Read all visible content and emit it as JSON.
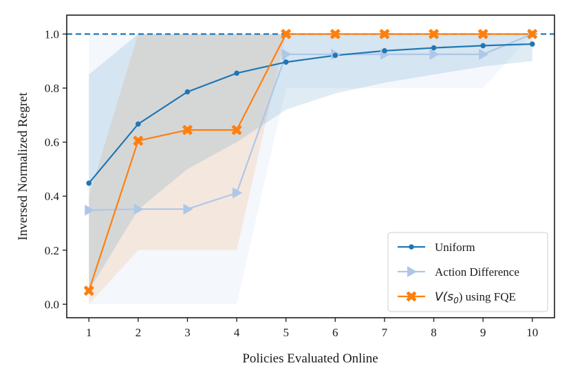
{
  "chart_data": {
    "type": "line",
    "xlabel": "Policies Evaluated Online",
    "ylabel": "Inversed Normalized Regret",
    "x": [
      1,
      2,
      3,
      4,
      5,
      6,
      7,
      8,
      9,
      10
    ],
    "xlim": [
      0.55,
      10.45
    ],
    "ylim": [
      -0.05,
      1.07
    ],
    "xticks": [
      1,
      2,
      3,
      4,
      5,
      6,
      7,
      8,
      9,
      10
    ],
    "yticks": [
      0.0,
      0.2,
      0.4,
      0.6,
      0.8,
      1.0
    ],
    "ytick_labels": [
      "0.0",
      "0.2",
      "0.4",
      "0.6",
      "0.8",
      "1.0"
    ],
    "reference_line": {
      "y": 1.0,
      "style": "dashed",
      "color": "#1f77b4"
    },
    "grid": false,
    "legend_position": "bottom-right",
    "series": [
      {
        "name": "Uniform",
        "color": "#1f77b4",
        "marker": "circle",
        "values": [
          0.448,
          0.667,
          0.786,
          0.855,
          0.896,
          0.921,
          0.938,
          0.949,
          0.957,
          0.963
        ],
        "band_lower": [
          0.05,
          0.35,
          0.5,
          0.6,
          0.72,
          0.78,
          0.82,
          0.85,
          0.88,
          0.9
        ],
        "band_upper": [
          0.85,
          1.0,
          1.0,
          1.0,
          1.0,
          1.0,
          1.0,
          1.0,
          1.0,
          1.0
        ]
      },
      {
        "name": "Action Difference",
        "color": "#aec7e8",
        "marker": "triangle-right",
        "values": [
          0.348,
          0.352,
          0.352,
          0.412,
          0.925,
          0.925,
          0.925,
          0.925,
          0.925,
          1.0
        ],
        "band_lower": [
          0.0,
          0.0,
          0.0,
          0.0,
          0.8,
          0.8,
          0.8,
          0.8,
          0.8,
          1.0
        ],
        "band_upper": [
          1.0,
          1.0,
          1.0,
          1.0,
          1.0,
          1.0,
          1.0,
          1.0,
          1.0,
          1.0
        ]
      },
      {
        "name": "V(s0) using FQE",
        "color": "#ff7f0e",
        "marker": "x-filled",
        "values": [
          0.05,
          0.605,
          0.645,
          0.645,
          1.0,
          1.0,
          1.0,
          1.0,
          1.0,
          1.0
        ],
        "band_lower": [
          0.0,
          0.2,
          0.2,
          0.2,
          1.0,
          1.0,
          1.0,
          1.0,
          1.0,
          1.0
        ],
        "band_upper": [
          0.4,
          1.0,
          1.0,
          1.0,
          1.0,
          1.0,
          1.0,
          1.0,
          1.0,
          1.0
        ]
      }
    ],
    "legend": {
      "entries": [
        "Uniform",
        "Action Difference",
        "V(s0) using FQE"
      ],
      "fqe_prefix": "V(s",
      "fqe_sub": "0",
      "fqe_suffix": ") using FQE"
    }
  }
}
